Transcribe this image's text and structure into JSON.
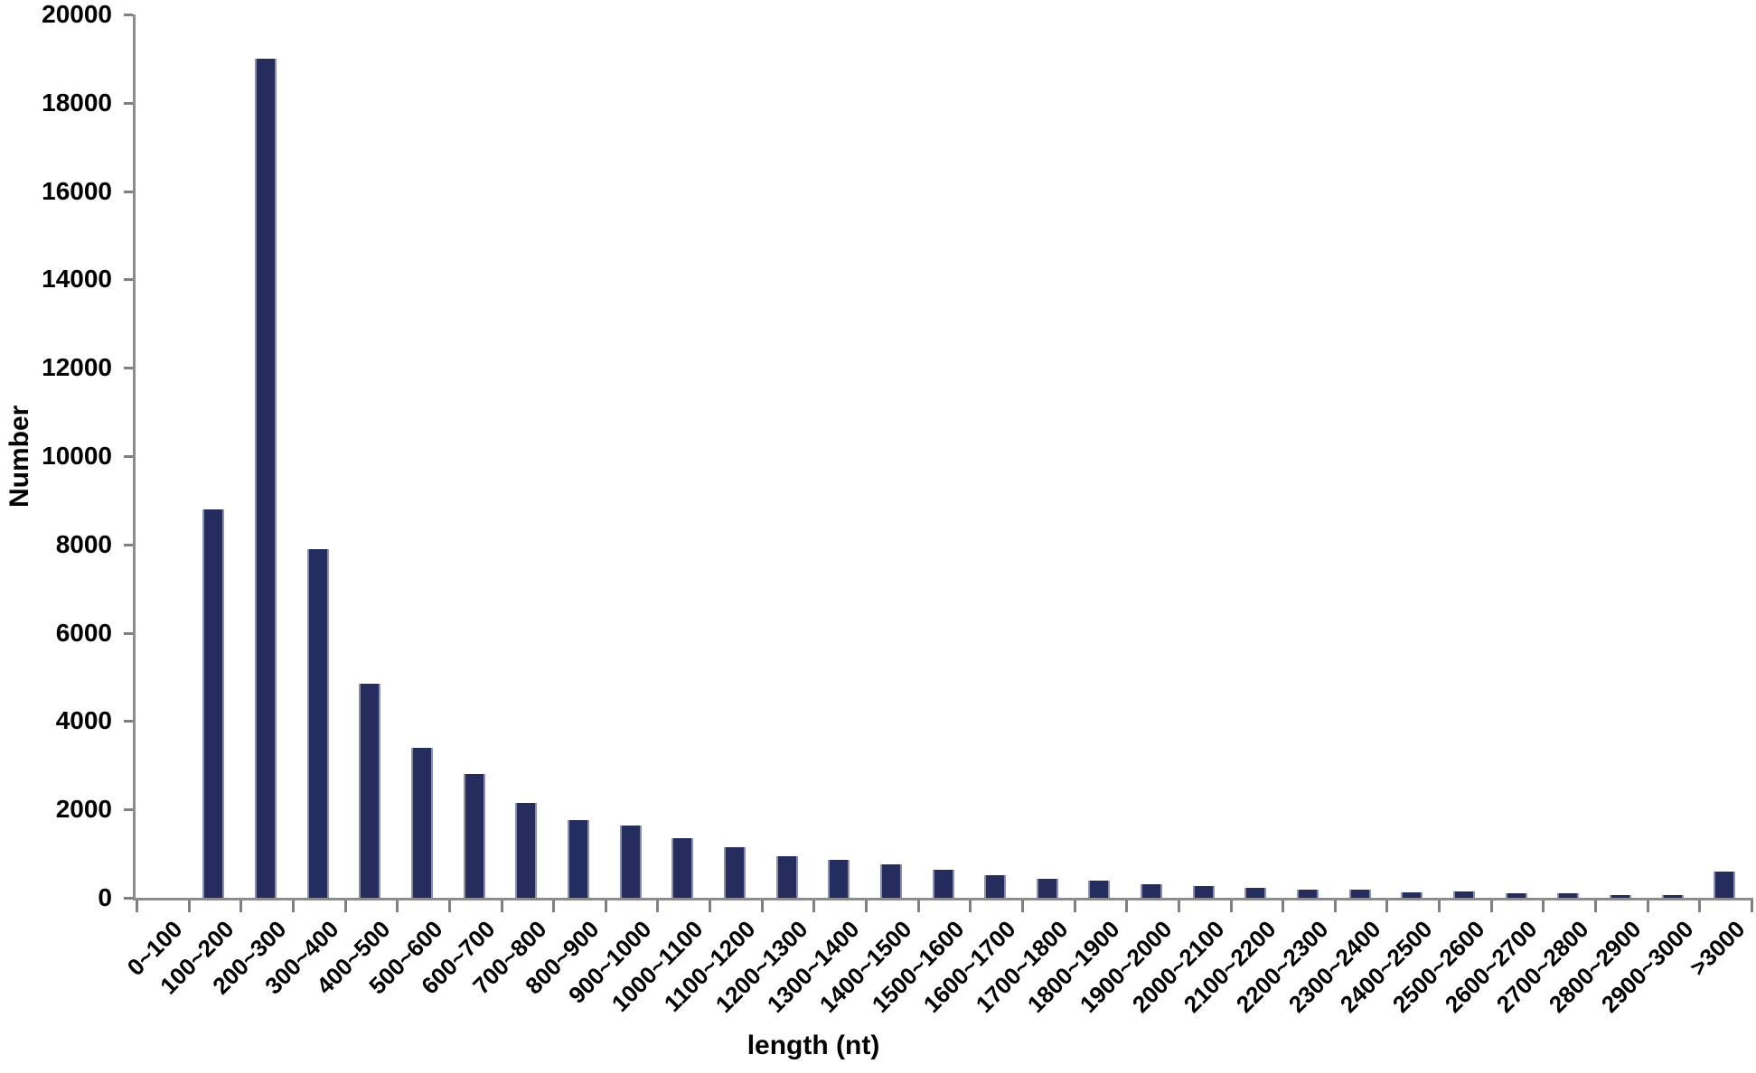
{
  "chart_data": {
    "type": "bar",
    "title": "",
    "xlabel": "length (nt)",
    "ylabel": "Number",
    "categories": [
      "0~100",
      "100~200",
      "200~300",
      "300~400",
      "400~500",
      "500~600",
      "600~700",
      "700~800",
      "800~900",
      "900~1000",
      "1000~1100",
      "1100~1200",
      "1200~1300",
      "1300~1400",
      "1400~1500",
      "1500~1600",
      "1600~1700",
      "1700~1800",
      "1800~1900",
      "1900~2000",
      "2000~2100",
      "2100~2200",
      "2200~2300",
      "2300~2400",
      "2400~2500",
      "2500~2600",
      "2600~2700",
      "2700~2800",
      "2800~2900",
      "2900~3000",
      ">3000"
    ],
    "values": [
      0,
      8800,
      19000,
      7900,
      4850,
      3400,
      2800,
      2150,
      1760,
      1630,
      1340,
      1140,
      950,
      850,
      750,
      640,
      520,
      430,
      390,
      310,
      270,
      225,
      190,
      180,
      120,
      140,
      100,
      100,
      70,
      60,
      600
    ],
    "ylim": [
      0,
      20000
    ],
    "y_ticks": [
      0,
      2000,
      4000,
      6000,
      8000,
      10000,
      12000,
      14000,
      16000,
      18000,
      20000
    ],
    "grid": false,
    "legend": false,
    "bar_color": "#252d5f",
    "axis_color": "#8c8c8c",
    "text_color": "#000000"
  }
}
